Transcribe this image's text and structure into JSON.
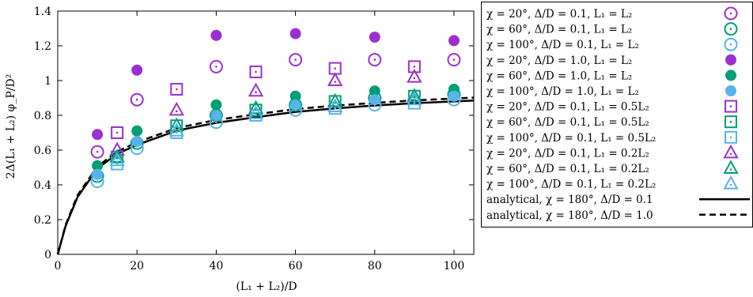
{
  "chart_data": {
    "type": "scatter",
    "xlabel": "(L₁ + L₂)/D",
    "ylabel": "2Δ(L₁ + L₂) φ_P/D²",
    "xlim": [
      0,
      105
    ],
    "ylim": [
      0,
      1.4
    ],
    "x_ticks": [
      0,
      20,
      40,
      60,
      80,
      100
    ],
    "y_ticks": [
      0,
      0.2,
      0.4,
      0.6,
      0.8,
      1,
      1.2,
      1.4
    ],
    "x_tick_labels": [
      "0",
      "20",
      "40",
      "60",
      "80",
      "100"
    ],
    "y_tick_labels": [
      "0",
      "0.2",
      "0.4",
      "0.6",
      "0.8",
      "1",
      "1.2",
      "1.4"
    ],
    "grid": false,
    "legend_placement": "right",
    "colors": {
      "purple": "#9b30d0",
      "green": "#009e73",
      "blue": "#56b4e9"
    },
    "series": [
      {
        "name": "χ = 20°,   Δ/D = 0.1, L₁ = L₂",
        "marker": "circle-dot",
        "color": "#9b30d0",
        "x": [
          10,
          20,
          40,
          60,
          80,
          100
        ],
        "y": [
          0.59,
          0.89,
          1.08,
          1.12,
          1.12,
          1.12
        ]
      },
      {
        "name": "χ = 60°,   Δ/D = 0.1, L₁ = L₂",
        "marker": "circle-dot",
        "color": "#009e73",
        "x": [
          10,
          20,
          40,
          60,
          80,
          100
        ],
        "y": [
          0.45,
          0.64,
          0.8,
          0.86,
          0.9,
          0.92
        ]
      },
      {
        "name": "χ = 100°, Δ/D = 0.1, L₁ = L₂",
        "marker": "circle-dot",
        "color": "#56b4e9",
        "x": [
          10,
          20,
          40,
          60,
          80,
          100
        ],
        "y": [
          0.42,
          0.61,
          0.76,
          0.83,
          0.86,
          0.89
        ]
      },
      {
        "name": "χ = 20°,   Δ/D = 1.0, L₁ = L₂",
        "marker": "filled-circle",
        "color": "#9b30d0",
        "x": [
          10,
          20,
          40,
          60,
          80,
          100
        ],
        "y": [
          0.69,
          1.06,
          1.26,
          1.27,
          1.25,
          1.23
        ]
      },
      {
        "name": "χ = 60°,   Δ/D = 1.0, L₁ = L₂",
        "marker": "filled-circle",
        "color": "#009e73",
        "x": [
          10,
          20,
          40,
          60,
          80,
          100
        ],
        "y": [
          0.51,
          0.71,
          0.86,
          0.91,
          0.94,
          0.95
        ]
      },
      {
        "name": "χ = 100°, Δ/D = 1.0, L₁ = L₂",
        "marker": "filled-circle",
        "color": "#56b4e9",
        "x": [
          10,
          20,
          40,
          60,
          80,
          100
        ],
        "y": [
          0.46,
          0.65,
          0.8,
          0.86,
          0.89,
          0.91
        ]
      },
      {
        "name": "χ = 20°,   Δ/D = 0.1, L₁ = 0.5L₂",
        "marker": "square-dot",
        "color": "#9b30d0",
        "x": [
          15,
          30,
          50,
          70,
          90
        ],
        "y": [
          0.7,
          0.95,
          1.05,
          1.07,
          1.08
        ]
      },
      {
        "name": "χ = 60°,   Δ/D = 0.1, L₁ = 0.5L₂",
        "marker": "square-dot",
        "color": "#009e73",
        "x": [
          15,
          30,
          50,
          70,
          90
        ],
        "y": [
          0.56,
          0.74,
          0.83,
          0.88,
          0.91
        ]
      },
      {
        "name": "χ = 100°, Δ/D = 0.1, L₁ = 0.5L₂",
        "marker": "square-dot",
        "color": "#56b4e9",
        "x": [
          15,
          30,
          50,
          70,
          90
        ],
        "y": [
          0.52,
          0.7,
          0.8,
          0.84,
          0.87
        ]
      },
      {
        "name": "χ = 20°,   Δ/D = 0.1, L₁ = 0.2L₂",
        "marker": "triangle-dot",
        "color": "#9b30d0",
        "x": [
          15,
          30,
          50,
          70,
          90
        ],
        "y": [
          0.6,
          0.83,
          0.94,
          1.0,
          1.02
        ]
      },
      {
        "name": "χ = 60°,   Δ/D = 0.1, L₁ = 0.2L₂",
        "marker": "triangle-dot",
        "color": "#009e73",
        "x": [
          15,
          30,
          50,
          70,
          90
        ],
        "y": [
          0.56,
          0.74,
          0.84,
          0.88,
          0.91
        ]
      },
      {
        "name": "χ = 100°, Δ/D = 0.1, L₁ = 0.2L₂",
        "marker": "triangle-dot",
        "color": "#56b4e9",
        "x": [
          15,
          30,
          50,
          70,
          90
        ],
        "y": [
          0.54,
          0.71,
          0.81,
          0.85,
          0.89
        ]
      }
    ],
    "curves": [
      {
        "name": "analytical, χ = 180°, Δ/D = 0.1",
        "style": "solid",
        "color": "#000000",
        "x": [
          0,
          2,
          5,
          10,
          15,
          20,
          30,
          40,
          50,
          60,
          70,
          80,
          90,
          100,
          105
        ],
        "y": [
          0,
          0.164,
          0.329,
          0.494,
          0.578,
          0.63,
          0.712,
          0.757,
          0.789,
          0.82,
          0.84,
          0.857,
          0.87,
          0.88,
          0.885
        ]
      },
      {
        "name": "analytical, χ = 180°, Δ/D = 1.0",
        "style": "dashed",
        "color": "#000000",
        "x": [
          0,
          2,
          5,
          10,
          15,
          20,
          30,
          40,
          50,
          60,
          70,
          80,
          90,
          100,
          105
        ],
        "y": [
          0,
          0.17,
          0.34,
          0.505,
          0.592,
          0.645,
          0.727,
          0.773,
          0.806,
          0.836,
          0.856,
          0.872,
          0.886,
          0.897,
          0.902
        ]
      }
    ]
  }
}
